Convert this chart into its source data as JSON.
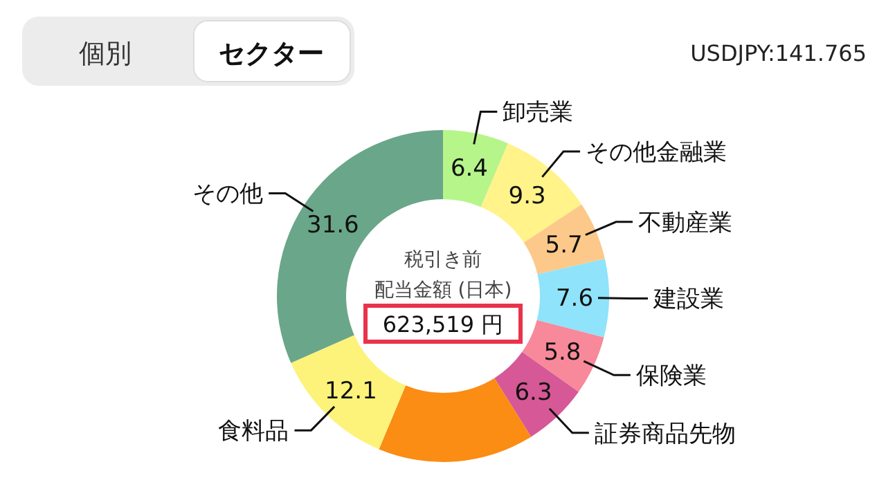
{
  "chart_data": {
    "type": "donut",
    "categories": [
      "卸売業",
      "その他金融業",
      "不動産業",
      "建設業",
      "保険業",
      "証券商品先物",
      null,
      "食料品",
      "その他"
    ],
    "values": [
      6.4,
      9.3,
      5.7,
      7.6,
      5.8,
      6.3,
      15.2,
      12.1,
      31.6
    ],
    "colors": [
      "#b6f58a",
      "#fff38a",
      "#fcc98a",
      "#8fe3fb",
      "#f8899a",
      "#d65896",
      "#fb8c14",
      "#fdf37a",
      "#6aa68a"
    ],
    "value_labels": [
      "6.4",
      "9.3",
      "5.7",
      "7.6",
      "5.8",
      "6.3",
      null,
      "12.1",
      "31.6"
    ],
    "annotations": [
      "個別",
      "セクター",
      "USDJPY:141.765",
      "税引き前",
      "配当金額 (日本)",
      "623,519 円"
    ]
  }
}
